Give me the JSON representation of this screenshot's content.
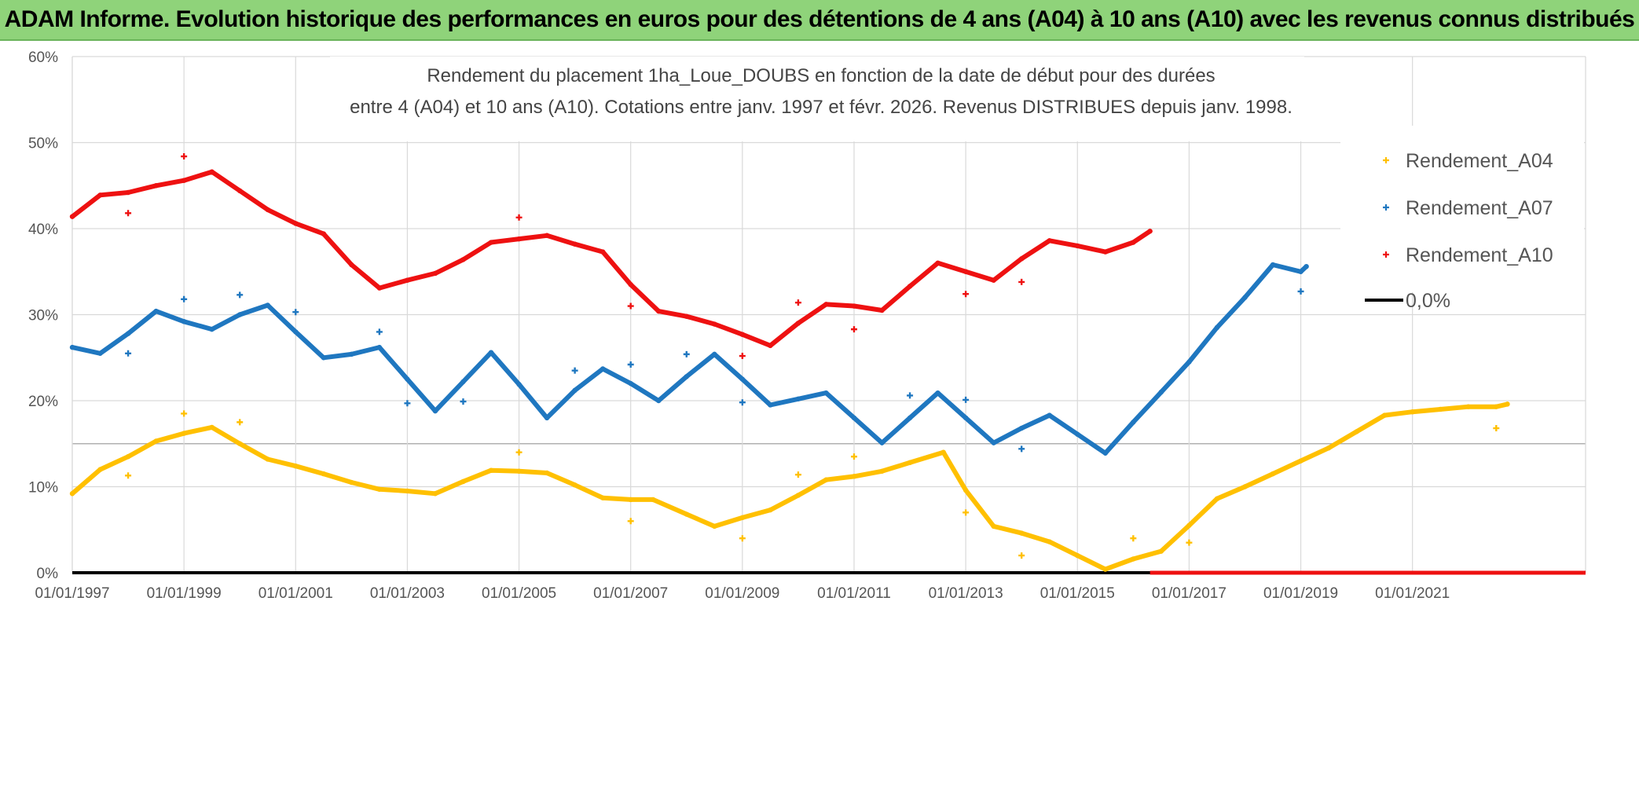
{
  "banner": {
    "title": "ADAM Informe. Evolution historique des performances en euros pour des détentions de 4 ans (A04) à 10 ans (A10) avec les revenus connus distribués"
  },
  "chart_data": {
    "type": "scatter",
    "title_line1": "Rendement du placement 1ha_Loue_DOUBS en fonction de la date de début pour des durées",
    "title_line2": "entre 4 (A04) et 10 ans (A10). Cotations entre janv. 1997 et févr. 2026. Revenus DISTRIBUES depuis janv. 1998.",
    "xlim": [
      1997.0,
      2024.1
    ],
    "ylim": [
      0,
      60
    ],
    "x_ticks": [
      1997,
      1999,
      2001,
      2003,
      2005,
      2007,
      2009,
      2011,
      2013,
      2015,
      2017,
      2019,
      2021
    ],
    "x_tick_labels": [
      "01/01/1997",
      "01/01/1999",
      "01/01/2001",
      "01/01/2003",
      "01/01/2005",
      "01/01/2007",
      "01/01/2009",
      "01/01/2011",
      "01/01/2013",
      "01/01/2015",
      "01/01/2017",
      "01/01/2019",
      "01/01/2021"
    ],
    "y_ticks": [
      0,
      10,
      20,
      30,
      40,
      50,
      60
    ],
    "y_tick_labels": [
      "0%",
      "10%",
      "20%",
      "30%",
      "40%",
      "50%",
      "60%"
    ],
    "extra_hline": 15,
    "series": [
      {
        "name": "Rendement_A04",
        "color": "#ffc000",
        "points": [
          [
            1997.0,
            9.2
          ],
          [
            1997.5,
            12.0
          ],
          [
            1998.0,
            13.5
          ],
          [
            1998.5,
            15.3
          ],
          [
            1999.0,
            16.2
          ],
          [
            1999.5,
            16.9
          ],
          [
            2000.0,
            15.0
          ],
          [
            2000.5,
            13.2
          ],
          [
            2001.0,
            12.4
          ],
          [
            2001.5,
            11.5
          ],
          [
            2002.0,
            10.5
          ],
          [
            2002.5,
            9.7
          ],
          [
            2003.0,
            9.5
          ],
          [
            2003.5,
            9.2
          ],
          [
            2004.0,
            10.6
          ],
          [
            2004.5,
            11.9
          ],
          [
            2005.0,
            11.8
          ],
          [
            2005.5,
            11.6
          ],
          [
            2006.0,
            10.2
          ],
          [
            2006.5,
            8.7
          ],
          [
            2007.0,
            8.5
          ],
          [
            2007.4,
            8.5
          ],
          [
            2008.0,
            6.8
          ],
          [
            2008.5,
            5.4
          ],
          [
            2009.0,
            6.4
          ],
          [
            2009.5,
            7.3
          ],
          [
            2010.0,
            9.0
          ],
          [
            2010.5,
            10.8
          ],
          [
            2011.0,
            11.2
          ],
          [
            2011.5,
            11.8
          ],
          [
            2012.0,
            12.8
          ],
          [
            2012.6,
            14.0
          ],
          [
            2013.0,
            9.6
          ],
          [
            2013.5,
            5.4
          ],
          [
            2014.0,
            4.6
          ],
          [
            2014.5,
            3.6
          ],
          [
            2015.0,
            2.0
          ],
          [
            2015.5,
            0.4
          ],
          [
            2016.0,
            1.6
          ],
          [
            2016.5,
            2.5
          ],
          [
            2017.0,
            5.5
          ],
          [
            2017.5,
            8.6
          ],
          [
            2018.0,
            10.0
          ],
          [
            2018.5,
            11.5
          ],
          [
            2019.0,
            13.0
          ],
          [
            2019.5,
            14.5
          ],
          [
            2020.0,
            16.4
          ],
          [
            2020.5,
            18.3
          ],
          [
            2021.0,
            18.7
          ],
          [
            2021.5,
            19.0
          ],
          [
            2022.0,
            19.3
          ],
          [
            2022.5,
            19.3
          ],
          [
            2022.7,
            19.6
          ]
        ],
        "outliers": [
          [
            1998.0,
            11.3
          ],
          [
            1999.0,
            18.5
          ],
          [
            2000.0,
            17.5
          ],
          [
            2005.0,
            14.0
          ],
          [
            2007.0,
            6.0
          ],
          [
            2009.0,
            4.0
          ],
          [
            2010.0,
            11.4
          ],
          [
            2011.0,
            13.5
          ],
          [
            2013.0,
            7.0
          ],
          [
            2014.0,
            2.0
          ],
          [
            2016.0,
            4.0
          ],
          [
            2017.0,
            3.5
          ],
          [
            2022.5,
            16.8
          ]
        ]
      },
      {
        "name": "Rendement_A07",
        "color": "#1f77c0",
        "points": [
          [
            1997.0,
            26.2
          ],
          [
            1997.5,
            25.5
          ],
          [
            1998.0,
            27.8
          ],
          [
            1998.5,
            30.4
          ],
          [
            1999.0,
            29.2
          ],
          [
            1999.5,
            28.3
          ],
          [
            2000.0,
            30.0
          ],
          [
            2000.5,
            31.1
          ],
          [
            2001.0,
            28.0
          ],
          [
            2001.5,
            25.0
          ],
          [
            2002.0,
            25.4
          ],
          [
            2002.5,
            26.2
          ],
          [
            2003.0,
            22.5
          ],
          [
            2003.5,
            18.8
          ],
          [
            2004.0,
            22.2
          ],
          [
            2004.5,
            25.6
          ],
          [
            2005.0,
            21.9
          ],
          [
            2005.5,
            18.0
          ],
          [
            2006.0,
            21.2
          ],
          [
            2006.5,
            23.7
          ],
          [
            2007.0,
            22.0
          ],
          [
            2007.5,
            20.0
          ],
          [
            2008.0,
            22.8
          ],
          [
            2008.5,
            25.4
          ],
          [
            2009.0,
            22.5
          ],
          [
            2009.5,
            19.5
          ],
          [
            2010.0,
            20.2
          ],
          [
            2010.5,
            20.9
          ],
          [
            2011.0,
            18.0
          ],
          [
            2011.5,
            15.1
          ],
          [
            2012.0,
            18.0
          ],
          [
            2012.5,
            20.9
          ],
          [
            2013.0,
            18.0
          ],
          [
            2013.5,
            15.1
          ],
          [
            2014.0,
            16.8
          ],
          [
            2014.5,
            18.3
          ],
          [
            2015.0,
            16.1
          ],
          [
            2015.5,
            13.9
          ],
          [
            2016.0,
            17.5
          ],
          [
            2016.5,
            21.0
          ],
          [
            2017.0,
            24.5
          ],
          [
            2017.5,
            28.5
          ],
          [
            2018.0,
            32.0
          ],
          [
            2018.5,
            35.8
          ],
          [
            2019.0,
            35.0
          ],
          [
            2019.1,
            35.6
          ]
        ],
        "outliers": [
          [
            1998.0,
            25.5
          ],
          [
            1999.0,
            31.8
          ],
          [
            2000.0,
            32.3
          ],
          [
            2001.0,
            30.3
          ],
          [
            2002.5,
            28.0
          ],
          [
            2003.0,
            19.7
          ],
          [
            2004.0,
            19.9
          ],
          [
            2006.0,
            23.5
          ],
          [
            2007.0,
            24.2
          ],
          [
            2008.0,
            25.4
          ],
          [
            2009.0,
            19.8
          ],
          [
            2012.0,
            20.6
          ],
          [
            2013.0,
            20.1
          ],
          [
            2014.0,
            14.4
          ],
          [
            2019.0,
            32.7
          ]
        ]
      },
      {
        "name": "Rendement_A10",
        "color": "#ee1111",
        "points": [
          [
            1997.0,
            41.4
          ],
          [
            1997.5,
            43.9
          ],
          [
            1998.0,
            44.2
          ],
          [
            1998.5,
            45.0
          ],
          [
            1999.0,
            45.6
          ],
          [
            1999.5,
            46.6
          ],
          [
            2000.0,
            44.4
          ],
          [
            2000.5,
            42.2
          ],
          [
            2001.0,
            40.6
          ],
          [
            2001.5,
            39.4
          ],
          [
            2002.0,
            35.8
          ],
          [
            2002.5,
            33.1
          ],
          [
            2003.0,
            34.0
          ],
          [
            2003.5,
            34.8
          ],
          [
            2004.0,
            36.4
          ],
          [
            2004.5,
            38.4
          ],
          [
            2005.0,
            38.8
          ],
          [
            2005.5,
            39.2
          ],
          [
            2006.0,
            38.2
          ],
          [
            2006.5,
            37.3
          ],
          [
            2007.0,
            33.5
          ],
          [
            2007.5,
            30.4
          ],
          [
            2008.0,
            29.8
          ],
          [
            2008.5,
            28.9
          ],
          [
            2009.0,
            27.7
          ],
          [
            2009.5,
            26.4
          ],
          [
            2010.0,
            29.0
          ],
          [
            2010.5,
            31.2
          ],
          [
            2011.0,
            31.0
          ],
          [
            2011.5,
            30.5
          ],
          [
            2012.0,
            33.3
          ],
          [
            2012.5,
            36.0
          ],
          [
            2013.0,
            35.0
          ],
          [
            2013.5,
            34.0
          ],
          [
            2014.0,
            36.5
          ],
          [
            2014.5,
            38.6
          ],
          [
            2015.0,
            38.0
          ],
          [
            2015.5,
            37.3
          ],
          [
            2016.0,
            38.4
          ],
          [
            2016.3,
            39.7
          ]
        ],
        "outliers": [
          [
            1998.0,
            41.8
          ],
          [
            1999.0,
            48.4
          ],
          [
            2005.0,
            41.3
          ],
          [
            2007.0,
            31.0
          ],
          [
            2009.0,
            25.2
          ],
          [
            2010.0,
            31.4
          ],
          [
            2011.0,
            28.3
          ],
          [
            2013.0,
            32.4
          ],
          [
            2014.0,
            33.8
          ]
        ]
      }
    ],
    "zero_segments": [
      {
        "name": "Rendement_A10",
        "color": "#ee1111",
        "x_from": 2016.3,
        "x_to": 2024.1,
        "y": 0
      }
    ],
    "legend": [
      {
        "label": "Rendement_A04",
        "color": "#ffc000",
        "kind": "marker"
      },
      {
        "label": "Rendement_A07",
        "color": "#1f77c0",
        "kind": "marker"
      },
      {
        "label": "Rendement_A10",
        "color": "#ee1111",
        "kind": "marker"
      },
      {
        "label": "0,0%",
        "color": "#000000",
        "kind": "line"
      }
    ],
    "legend_position": "top-right"
  }
}
